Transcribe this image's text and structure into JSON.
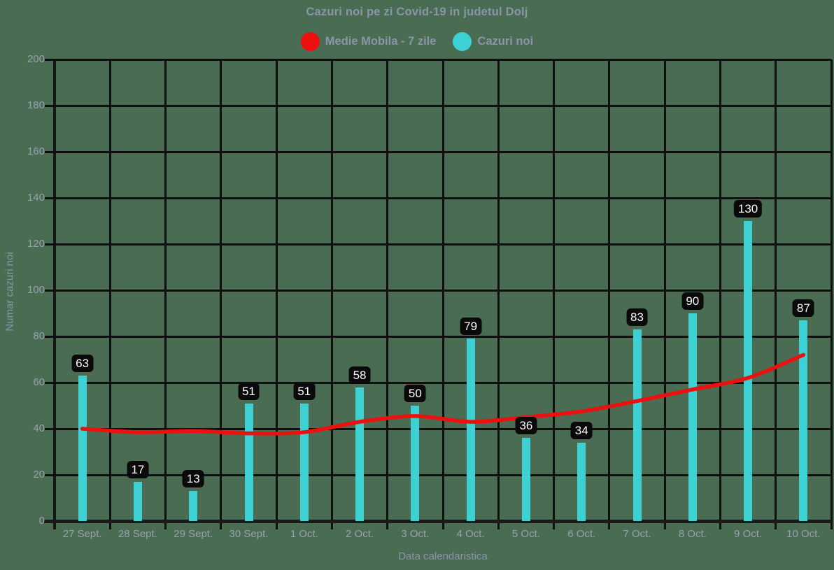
{
  "chart_data": {
    "type": "bar",
    "title": "Cazuri noi pe zi Covid-19 in judetul Dolj",
    "xlabel": "Data calendaristica",
    "ylabel": "Numar cazuri noi",
    "categories": [
      "27 Sept.",
      "28 Sept.",
      "29 Sept.",
      "30 Sept.",
      "1 Oct.",
      "2 Oct.",
      "3 Oct.",
      "4 Oct.",
      "5 Oct.",
      "6 Oct.",
      "7 Oct.",
      "8 Oct.",
      "9 Oct.",
      "10 Oct."
    ],
    "series": [
      {
        "name": "Medie Mobila - 7 zile",
        "type": "line",
        "color": "#ee0f0f",
        "values": [
          40,
          38.5,
          39,
          38,
          38.5,
          43,
          45.5,
          43,
          45,
          47.5,
          52,
          57,
          62,
          72
        ]
      },
      {
        "name": "Cazuri noi",
        "type": "bar",
        "color": "#3dd1d4",
        "values": [
          63,
          17,
          13,
          51,
          51,
          58,
          50,
          79,
          36,
          34,
          83,
          90,
          130,
          87
        ]
      }
    ],
    "ylim": [
      0,
      200
    ],
    "ytick_step": 20,
    "grid": true,
    "legend_position": "top",
    "value_labels": true
  },
  "colors": {
    "background": "#4a6c52",
    "grid": "#0f0f0f",
    "axis": "#1a1a1a",
    "text": "#8a95a9",
    "tick_text": "#97a1b2",
    "label_box_bg": "#0a0a0a",
    "label_box_text": "#fafafa"
  }
}
